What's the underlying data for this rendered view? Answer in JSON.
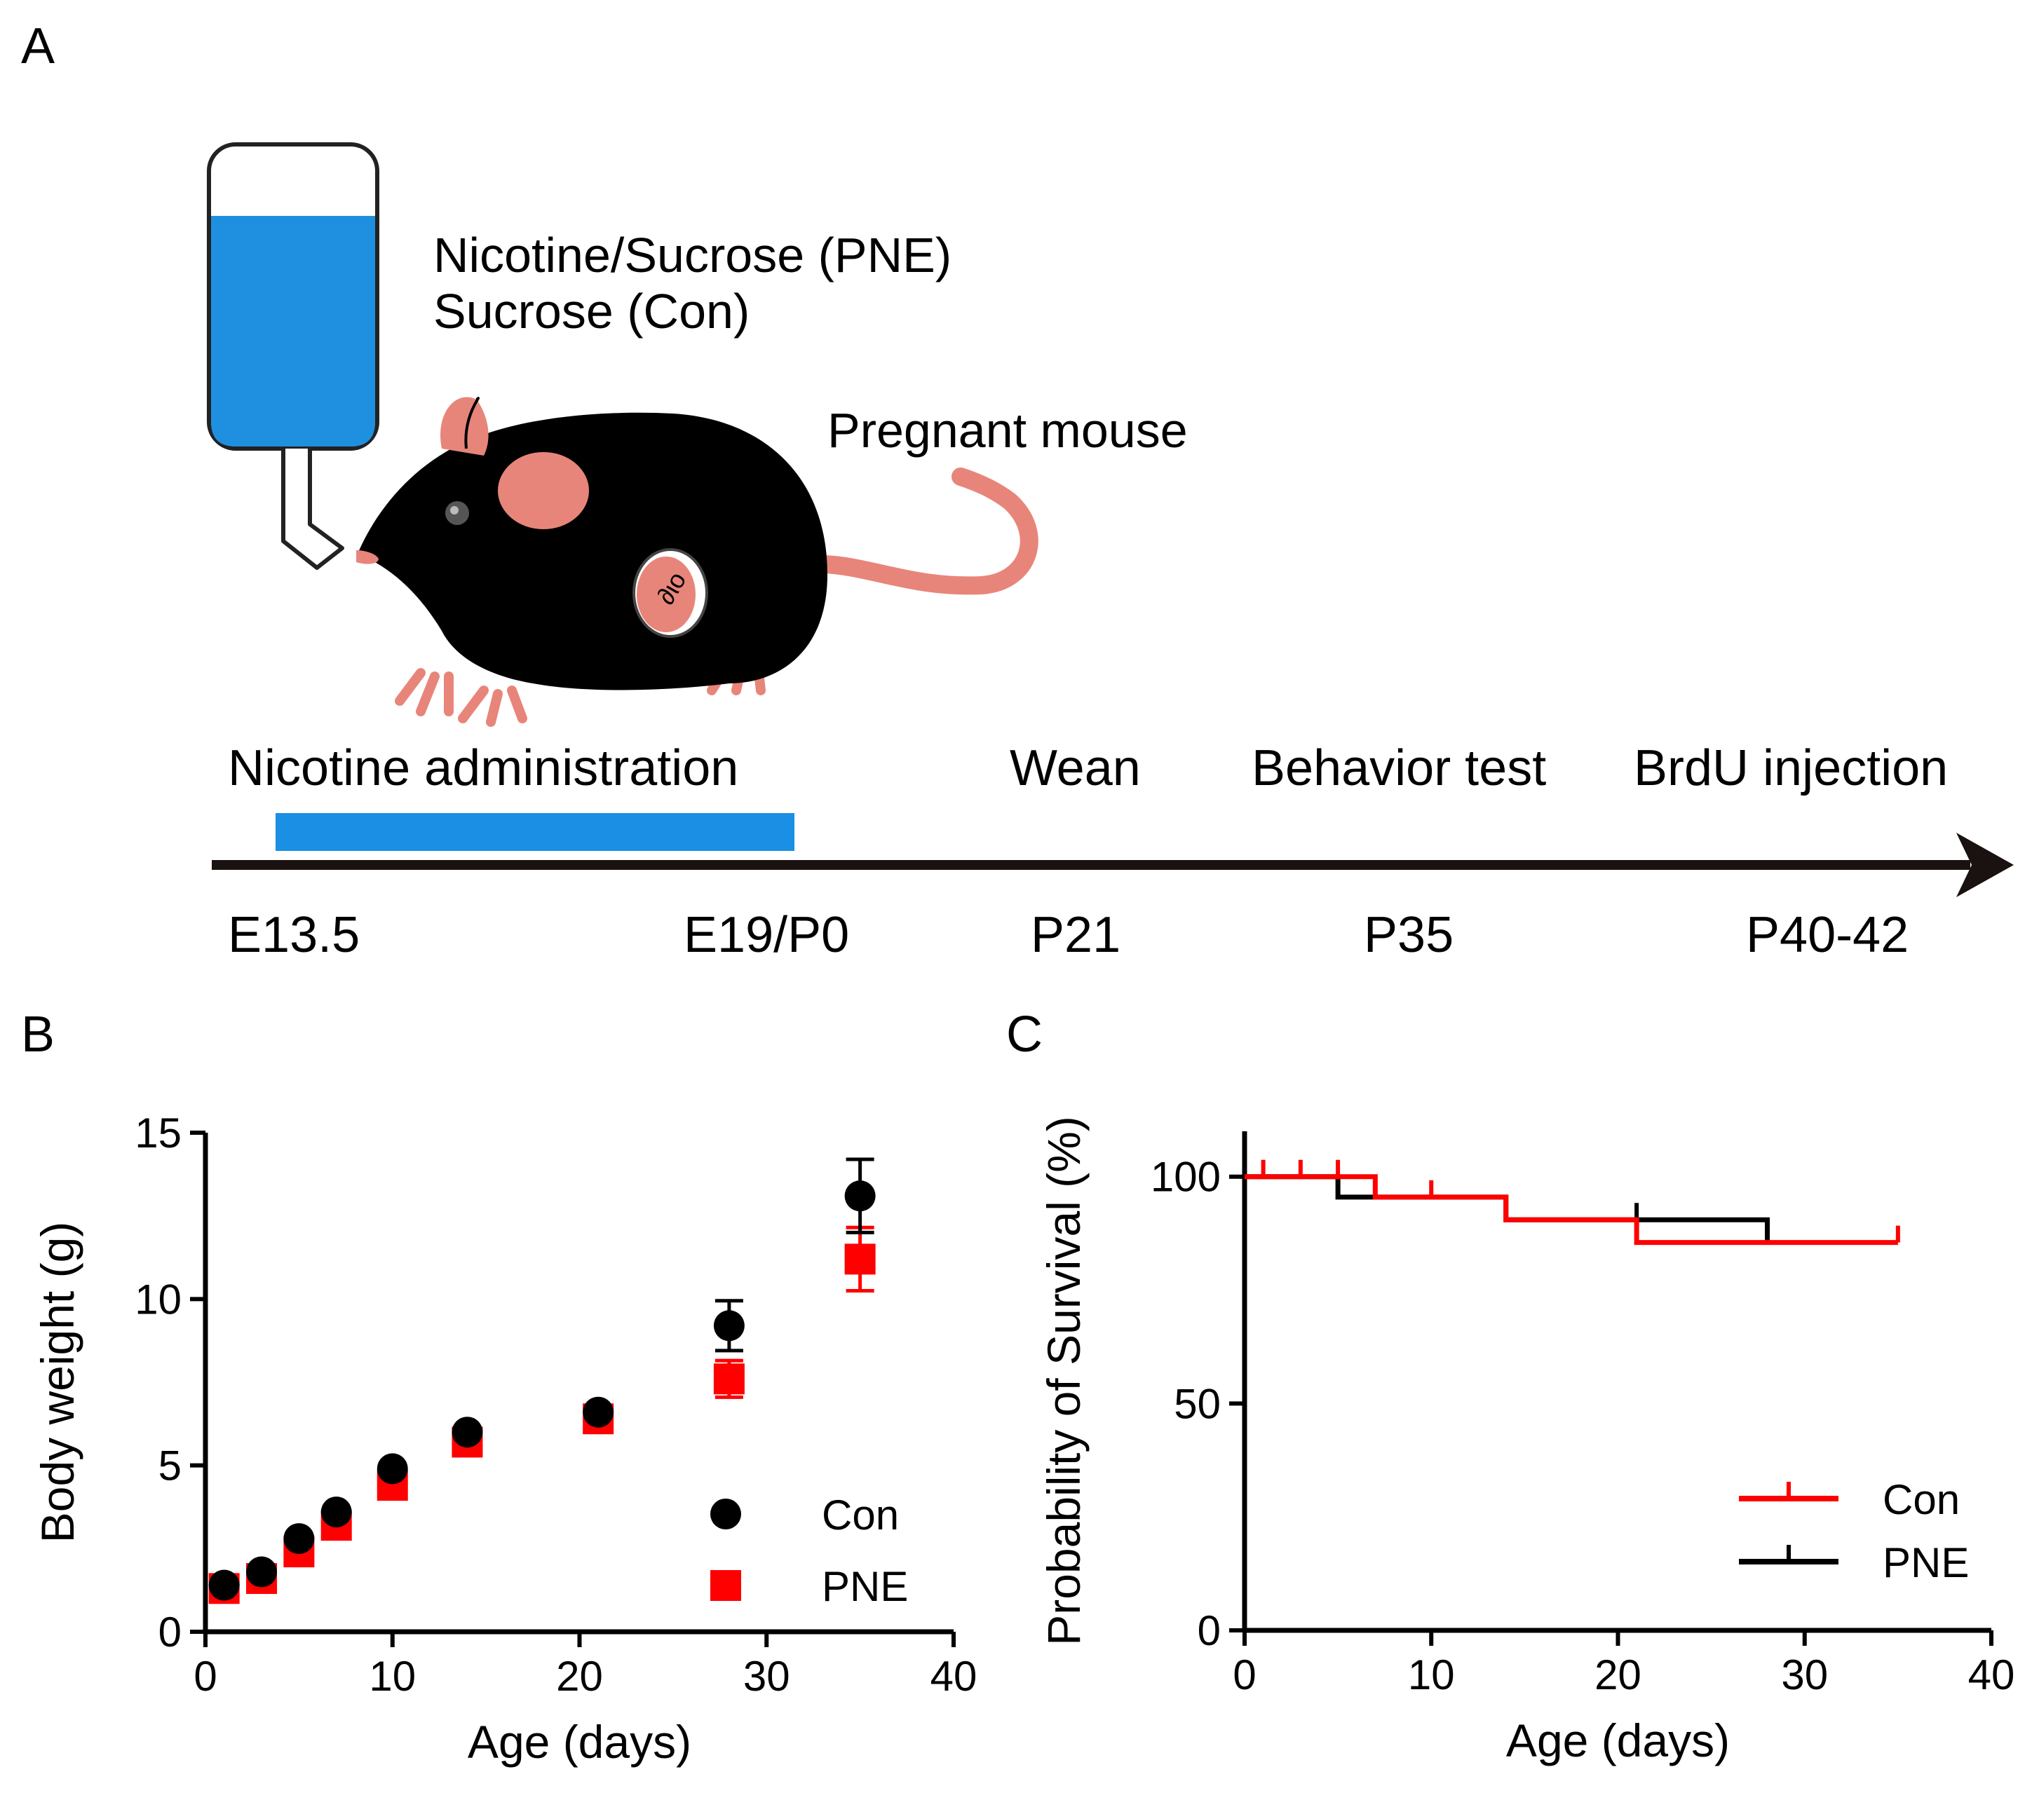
{
  "panels": {
    "a": {
      "letter": "A",
      "solution_line1": "Nicotine/Sucrose (PNE)",
      "solution_line2": "Sucrose (Con)",
      "mouse_label": "Pregnant mouse",
      "events": {
        "nicotine": "Nicotine administration",
        "wean": "Wean",
        "behavior": "Behavior test",
        "brdu": "BrdU injection"
      },
      "timepoints": {
        "e135": "E13.5",
        "e19p0": "E19/P0",
        "p21": "P21",
        "p35": "P35",
        "p4042": "P40-42"
      },
      "colors": {
        "water": "#1f8fe0",
        "bar": "#1a8fe3",
        "mouse": "#000000",
        "pink": "#e8857a"
      }
    },
    "b": {
      "letter": "B"
    },
    "c": {
      "letter": "C"
    }
  },
  "chart_data": [
    {
      "type": "scatter",
      "panel": "B",
      "xlabel": "Age (days)",
      "ylabel": "Body weight (g)",
      "xlim": [
        0,
        40
      ],
      "ylim": [
        0,
        15
      ],
      "xticks": [
        0,
        10,
        20,
        30,
        40
      ],
      "yticks": [
        0,
        5,
        10,
        15
      ],
      "grid": false,
      "legend": "bottom-right",
      "series": [
        {
          "name": "Con",
          "marker": "circle",
          "color": "#000000",
          "x": [
            1,
            3,
            5,
            7,
            10,
            14,
            21,
            28,
            35
          ],
          "y": [
            1.4,
            1.8,
            2.8,
            3.6,
            4.9,
            6.0,
            6.6,
            9.2,
            13.1
          ],
          "err": [
            0.1,
            0.1,
            0.1,
            0.1,
            0.1,
            0.1,
            0.15,
            0.75,
            1.1
          ]
        },
        {
          "name": "PNE",
          "marker": "square",
          "color": "#ff0000",
          "x": [
            1,
            3,
            5,
            7,
            10,
            14,
            21,
            28,
            35
          ],
          "y": [
            1.3,
            1.6,
            2.4,
            3.2,
            4.4,
            5.7,
            6.4,
            7.6,
            11.2
          ],
          "err": [
            0.1,
            0.1,
            0.1,
            0.1,
            0.1,
            0.1,
            0.2,
            0.55,
            0.95
          ]
        }
      ]
    },
    {
      "type": "line",
      "panel": "C",
      "xlabel": "Age (days)",
      "ylabel": "Probability of Survival (%)",
      "xlim": [
        0,
        40
      ],
      "ylim": [
        0,
        110
      ],
      "xticks": [
        0,
        10,
        20,
        30,
        40
      ],
      "yticks": [
        0,
        50,
        100
      ],
      "grid": false,
      "legend": "bottom-right",
      "series": [
        {
          "name": "Con",
          "color": "#ff0000",
          "step_x": [
            0,
            7,
            14,
            21,
            35
          ],
          "step_y": [
            100,
            95.5,
            90.5,
            85.5,
            85.5
          ],
          "censor_x": [
            1,
            3,
            5,
            10,
            35
          ],
          "censor_y": [
            100,
            100,
            100,
            95.5,
            85.5
          ]
        },
        {
          "name": "PNE",
          "color": "#000000",
          "step_x": [
            0,
            5,
            14,
            21,
            28
          ],
          "step_y": [
            100,
            95.5,
            90.5,
            90.5,
            85.5
          ],
          "censor_x": [
            21
          ],
          "censor_y": [
            90.5
          ]
        }
      ]
    }
  ]
}
